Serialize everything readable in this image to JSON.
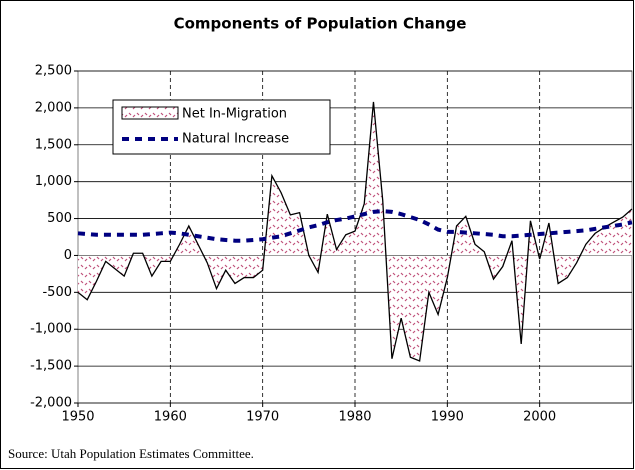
{
  "chart_data": {
    "type": "area-line",
    "title": "Components of Population Change",
    "source": "Source: Utah Population Estimates Committee.",
    "x": [
      1950,
      1951,
      1952,
      1953,
      1954,
      1955,
      1956,
      1957,
      1958,
      1959,
      1960,
      1961,
      1962,
      1963,
      1964,
      1965,
      1966,
      1967,
      1968,
      1969,
      1970,
      1971,
      1972,
      1973,
      1974,
      1975,
      1976,
      1977,
      1978,
      1979,
      1980,
      1981,
      1982,
      1983,
      1984,
      1985,
      1986,
      1987,
      1988,
      1989,
      1990,
      1991,
      1992,
      1993,
      1994,
      1995,
      1996,
      1997,
      1998,
      1999,
      2000,
      2001,
      2002,
      2003,
      2004,
      2005,
      2006,
      2007,
      2008,
      2009,
      2010
    ],
    "series": [
      {
        "name": "Net In-Migration",
        "color": "#c0507a",
        "line_color": "#000000",
        "values": [
          -500,
          -600,
          -350,
          -80,
          -180,
          -280,
          30,
          30,
          -280,
          -80,
          -80,
          150,
          400,
          150,
          -100,
          -450,
          -200,
          -380,
          -300,
          -300,
          -200,
          1080,
          850,
          550,
          580,
          0,
          -230,
          560,
          80,
          280,
          330,
          700,
          2080,
          750,
          -1400,
          -850,
          -1380,
          -1430,
          -500,
          -800,
          -300,
          400,
          530,
          150,
          50,
          -320,
          -150,
          200,
          -1200,
          470,
          -50,
          440,
          -380,
          -300,
          -100,
          150,
          300,
          380,
          450,
          520,
          630
        ]
      },
      {
        "name": "Natural Increase",
        "color": "#000080",
        "values": [
          300,
          290,
          280,
          280,
          280,
          280,
          280,
          280,
          290,
          300,
          310,
          300,
          280,
          260,
          240,
          220,
          210,
          200,
          200,
          210,
          220,
          240,
          260,
          300,
          340,
          380,
          410,
          450,
          480,
          500,
          530,
          560,
          590,
          600,
          590,
          560,
          520,
          480,
          420,
          350,
          320,
          320,
          310,
          300,
          290,
          280,
          260,
          260,
          270,
          280,
          290,
          300,
          310,
          320,
          330,
          340,
          360,
          380,
          400,
          420,
          450
        ]
      }
    ],
    "xlim": [
      1950,
      2010
    ],
    "xticks": [
      1950,
      1960,
      1970,
      1980,
      1990,
      2000
    ],
    "ylim": [
      -2000,
      2500
    ],
    "yticks": [
      {
        "value": -2000,
        "label": "-2,000"
      },
      {
        "value": -1500,
        "label": "-1,500"
      },
      {
        "value": -1000,
        "label": "-1,000"
      },
      -500,
      0,
      500,
      {
        "value": 1000,
        "label": "1,000"
      },
      {
        "value": 1500,
        "label": "1,500"
      },
      {
        "value": 2000,
        "label": "2,000"
      },
      {
        "value": 2500,
        "label": "2,500"
      }
    ],
    "grid": true
  }
}
